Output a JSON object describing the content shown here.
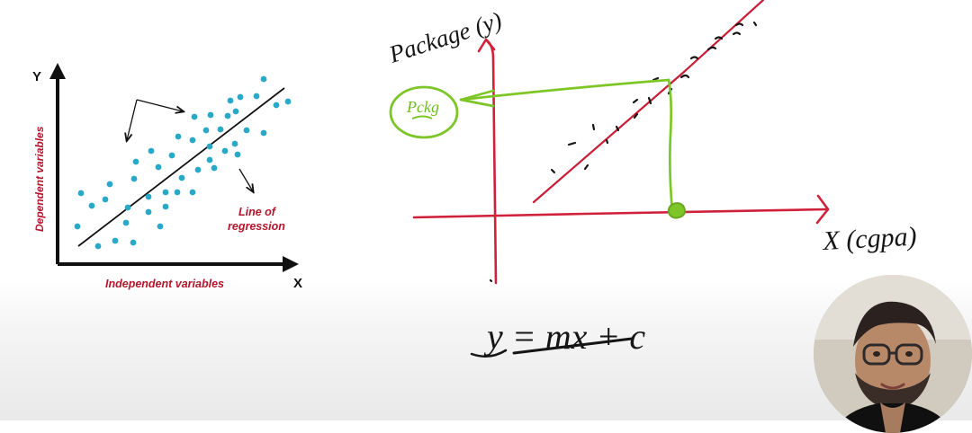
{
  "left_diagram": {
    "y_axis_letter": "Y",
    "x_axis_letter": "X",
    "y_axis_label": "Dependent variables",
    "x_axis_label": "Independent variables",
    "regression_label_line1": "Line of",
    "regression_label_line2": "regression",
    "dot_color": "#29a9c8",
    "label_color": "#b3162a",
    "points": [
      [
        90,
        215
      ],
      [
        102,
        229
      ],
      [
        86,
        252
      ],
      [
        109,
        274
      ],
      [
        128,
        268
      ],
      [
        148,
        270
      ],
      [
        122,
        205
      ],
      [
        117,
        222
      ],
      [
        142,
        231
      ],
      [
        140,
        248
      ],
      [
        149,
        199
      ],
      [
        151,
        180
      ],
      [
        168,
        168
      ],
      [
        176,
        186
      ],
      [
        165,
        219
      ],
      [
        165,
        236
      ],
      [
        184,
        230
      ],
      [
        178,
        252
      ],
      [
        191,
        173
      ],
      [
        202,
        198
      ],
      [
        198,
        152
      ],
      [
        214,
        156
      ],
      [
        229,
        145
      ],
      [
        234,
        128
      ],
      [
        253,
        129
      ],
      [
        262,
        124
      ],
      [
        267,
        108
      ],
      [
        285,
        107
      ],
      [
        293,
        88
      ],
      [
        307,
        117
      ],
      [
        320,
        113
      ],
      [
        293,
        148
      ],
      [
        274,
        145
      ],
      [
        261,
        160
      ],
      [
        264,
        172
      ],
      [
        250,
        168
      ],
      [
        233,
        178
      ],
      [
        220,
        189
      ],
      [
        238,
        187
      ],
      [
        214,
        214
      ],
      [
        197,
        214
      ],
      [
        184,
        214
      ],
      [
        245,
        144
      ],
      [
        216,
        130
      ],
      [
        256,
        112
      ],
      [
        233,
        163
      ]
    ]
  },
  "whiteboard": {
    "y_axis_caption": "Package (y)",
    "x_axis_caption": "X (cgpa)",
    "predicted_label": "Pckg",
    "equation": "y = mx + c",
    "axis_color": "#d0213b",
    "guide_color": "#7ec627"
  },
  "webcam": {
    "description_icon": "presenter-webcam-icon"
  }
}
